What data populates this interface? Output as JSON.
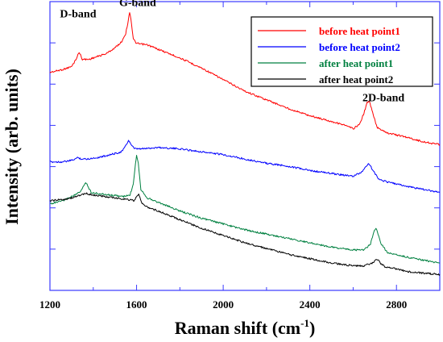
{
  "chart_data": {
    "type": "line",
    "xlabel_main": "Raman shift (cm",
    "xlabel_sup": "-1",
    "xlabel_end": ")",
    "ylabel": "Intensity (arb. units)",
    "xlim": [
      1200,
      3000
    ],
    "ylim": [
      0,
      1
    ],
    "xticks": [
      1200,
      1600,
      2000,
      2400,
      2800
    ],
    "yticks_count": 7,
    "grid": false,
    "legend_position": "top-right",
    "annotations": [
      {
        "id": "d-band",
        "text": "D-band",
        "x": 1330,
        "y": 0.945
      },
      {
        "id": "g-band",
        "text": "G-band",
        "x": 1605,
        "y": 0.985
      },
      {
        "id": "2d-band",
        "text": "2D-band",
        "x": 2740,
        "y": 0.655
      }
    ],
    "series": [
      {
        "name": "before heat point1",
        "color": "#ff0000",
        "x": [
          1200,
          1260,
          1300,
          1320,
          1335,
          1350,
          1380,
          1420,
          1460,
          1500,
          1530,
          1550,
          1562,
          1568,
          1574,
          1585,
          1600,
          1650,
          1700,
          1800,
          1900,
          2000,
          2100,
          2200,
          2300,
          2400,
          2450,
          2500,
          2550,
          2600,
          2630,
          2650,
          2665,
          2675,
          2690,
          2710,
          2760,
          2850,
          2920,
          3000
        ],
        "y": [
          0.755,
          0.765,
          0.775,
          0.8,
          0.825,
          0.8,
          0.8,
          0.81,
          0.82,
          0.84,
          0.86,
          0.89,
          0.935,
          0.965,
          0.94,
          0.87,
          0.855,
          0.85,
          0.835,
          0.805,
          0.77,
          0.73,
          0.69,
          0.66,
          0.63,
          0.605,
          0.595,
          0.585,
          0.575,
          0.56,
          0.575,
          0.615,
          0.65,
          0.655,
          0.615,
          0.565,
          0.545,
          0.53,
          0.515,
          0.505
        ]
      },
      {
        "name": "before heat point2",
        "color": "#0000ff",
        "x": [
          1200,
          1260,
          1300,
          1330,
          1345,
          1370,
          1420,
          1480,
          1530,
          1550,
          1563,
          1575,
          1590,
          1620,
          1700,
          1800,
          1900,
          2000,
          2100,
          2200,
          2300,
          2400,
          2500,
          2600,
          2640,
          2660,
          2670,
          2680,
          2700,
          2720,
          2760,
          2850,
          2920,
          3000
        ],
        "y": [
          0.445,
          0.445,
          0.45,
          0.46,
          0.455,
          0.455,
          0.46,
          0.47,
          0.48,
          0.5,
          0.52,
          0.505,
          0.49,
          0.49,
          0.495,
          0.49,
          0.48,
          0.47,
          0.455,
          0.44,
          0.43,
          0.415,
          0.405,
          0.395,
          0.41,
          0.43,
          0.44,
          0.43,
          0.405,
          0.385,
          0.375,
          0.36,
          0.35,
          0.34
        ]
      },
      {
        "name": "after heat point1",
        "color": "#008040",
        "x": [
          1200,
          1260,
          1300,
          1340,
          1365,
          1390,
          1420,
          1480,
          1540,
          1570,
          1585,
          1595,
          1600,
          1608,
          1620,
          1650,
          1700,
          1800,
          1900,
          2000,
          2100,
          2200,
          2300,
          2400,
          2500,
          2600,
          2650,
          2680,
          2695,
          2705,
          2715,
          2730,
          2760,
          2850,
          2920,
          3000
        ],
        "y": [
          0.3,
          0.31,
          0.325,
          0.34,
          0.375,
          0.34,
          0.335,
          0.33,
          0.325,
          0.33,
          0.37,
          0.44,
          0.47,
          0.44,
          0.35,
          0.32,
          0.305,
          0.275,
          0.25,
          0.23,
          0.21,
          0.195,
          0.18,
          0.165,
          0.15,
          0.14,
          0.14,
          0.16,
          0.2,
          0.215,
          0.195,
          0.16,
          0.13,
          0.115,
          0.105,
          0.095
        ]
      },
      {
        "name": "after heat point2",
        "color": "#000000",
        "x": [
          1200,
          1260,
          1300,
          1340,
          1370,
          1400,
          1450,
          1500,
          1560,
          1590,
          1600,
          1610,
          1625,
          1660,
          1700,
          1800,
          1900,
          2000,
          2100,
          2200,
          2300,
          2400,
          2500,
          2600,
          2650,
          2690,
          2705,
          2715,
          2725,
          2750,
          2800,
          2850,
          2920,
          3000
        ],
        "y": [
          0.31,
          0.315,
          0.32,
          0.33,
          0.335,
          0.33,
          0.325,
          0.32,
          0.315,
          0.31,
          0.325,
          0.335,
          0.3,
          0.285,
          0.275,
          0.245,
          0.215,
          0.19,
          0.165,
          0.145,
          0.125,
          0.11,
          0.095,
          0.085,
          0.085,
          0.095,
          0.105,
          0.105,
          0.095,
          0.08,
          0.075,
          0.065,
          0.06,
          0.055
        ]
      }
    ]
  }
}
